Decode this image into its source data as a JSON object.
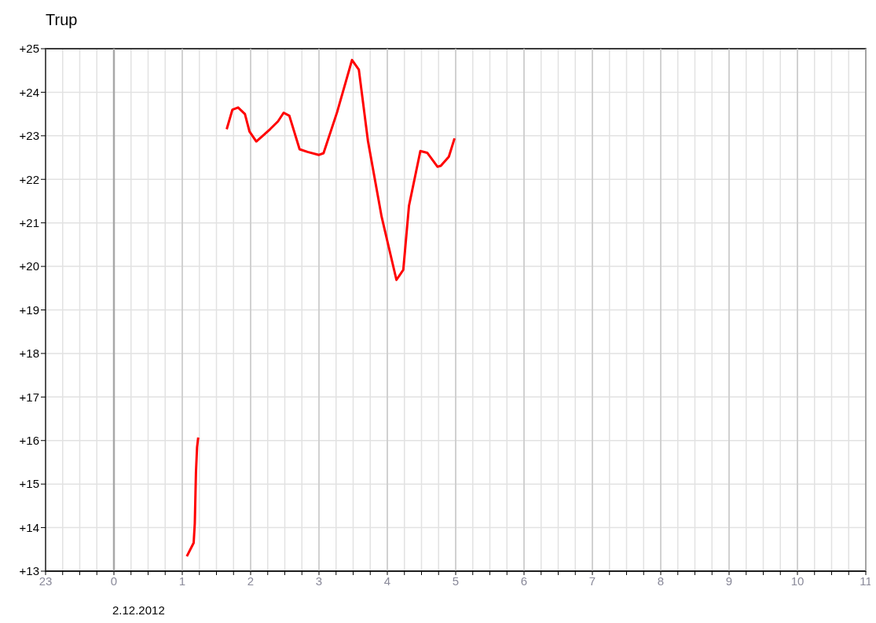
{
  "chart_data": {
    "type": "line",
    "title": "Trup",
    "x": [
      "2012-12-02T01:04",
      "2012-12-02T01:10",
      "2012-12-02T01:11",
      "2012-12-02T01:12",
      "2012-12-02T01:13",
      "2012-12-02T01:14",
      "2012-12-02T01:27",
      "2012-12-02T01:39",
      "2012-12-02T01:44",
      "2012-12-02T01:49",
      "2012-12-02T01:55",
      "2012-12-02T01:59",
      "2012-12-02T02:05",
      "2012-12-02T02:12",
      "2012-12-02T02:17",
      "2012-12-02T02:24",
      "2012-12-02T02:29",
      "2012-12-02T02:34",
      "2012-12-02T02:43",
      "2012-12-02T02:50",
      "2012-12-02T03:00",
      "2012-12-02T03:04",
      "2012-12-02T03:16",
      "2012-12-02T03:29",
      "2012-12-02T03:35",
      "2012-12-02T03:43",
      "2012-12-02T03:55",
      "2012-12-02T04:08",
      "2012-12-02T04:14",
      "2012-12-02T04:19",
      "2012-12-02T04:29",
      "2012-12-02T04:35",
      "2012-12-02T04:44",
      "2012-12-02T04:47",
      "2012-12-02T04:54",
      "2012-12-02T04:59"
    ],
    "series": [
      {
        "color": "#ff0000",
        "values": [
          13.34,
          13.65,
          14.1,
          15.26,
          15.85,
          16.07,
          null,
          23.15,
          23.6,
          23.65,
          23.5,
          23.1,
          22.87,
          23.03,
          23.15,
          23.33,
          23.53,
          23.46,
          22.69,
          22.63,
          22.56,
          22.6,
          23.55,
          24.74,
          24.52,
          22.88,
          21.14,
          19.69,
          19.92,
          21.39,
          22.65,
          22.61,
          22.29,
          22.31,
          22.52,
          22.94
        ]
      }
    ],
    "xlim": [
      "2012-12-01T23:00",
      "2012-12-02T11:00"
    ],
    "xticks": [
      {
        "value": "2012-12-01T23:00",
        "label": "23"
      },
      {
        "value": "2012-12-01T23:15",
        "label": null
      },
      {
        "value": "2012-12-01T23:30",
        "label": null
      },
      {
        "value": "2012-12-01T23:45",
        "label": null
      },
      {
        "value": "2012-12-02T00:00",
        "label": "0"
      },
      {
        "value": "2012-12-02T00:15",
        "label": null
      },
      {
        "value": "2012-12-02T00:30",
        "label": null
      },
      {
        "value": "2012-12-02T00:45",
        "label": null
      },
      {
        "value": "2012-12-02T01:00",
        "label": "1"
      },
      {
        "value": "2012-12-02T01:15",
        "label": null
      },
      {
        "value": "2012-12-02T01:30",
        "label": null
      },
      {
        "value": "2012-12-02T01:45",
        "label": null
      },
      {
        "value": "2012-12-02T02:00",
        "label": "2"
      },
      {
        "value": "2012-12-02T02:15",
        "label": null
      },
      {
        "value": "2012-12-02T02:30",
        "label": null
      },
      {
        "value": "2012-12-02T02:45",
        "label": null
      },
      {
        "value": "2012-12-02T03:00",
        "label": "3"
      },
      {
        "value": "2012-12-02T03:15",
        "label": null
      },
      {
        "value": "2012-12-02T03:30",
        "label": null
      },
      {
        "value": "2012-12-02T03:45",
        "label": null
      },
      {
        "value": "2012-12-02T04:00",
        "label": "4"
      },
      {
        "value": "2012-12-02T04:15",
        "label": null
      },
      {
        "value": "2012-12-02T04:30",
        "label": null
      },
      {
        "value": "2012-12-02T04:45",
        "label": null
      },
      {
        "value": "2012-12-02T05:00",
        "label": "5"
      },
      {
        "value": "2012-12-02T05:15",
        "label": null
      },
      {
        "value": "2012-12-02T05:30",
        "label": null
      },
      {
        "value": "2012-12-02T05:45",
        "label": null
      },
      {
        "value": "2012-12-02T06:00",
        "label": "6"
      },
      {
        "value": "2012-12-02T06:15",
        "label": null
      },
      {
        "value": "2012-12-02T06:30",
        "label": null
      },
      {
        "value": "2012-12-02T06:45",
        "label": null
      },
      {
        "value": "2012-12-02T07:00",
        "label": "7"
      },
      {
        "value": "2012-12-02T07:15",
        "label": null
      },
      {
        "value": "2012-12-02T07:30",
        "label": null
      },
      {
        "value": "2012-12-02T07:45",
        "label": null
      },
      {
        "value": "2012-12-02T08:00",
        "label": "8"
      },
      {
        "value": "2012-12-02T08:15",
        "label": null
      },
      {
        "value": "2012-12-02T08:30",
        "label": null
      },
      {
        "value": "2012-12-02T08:45",
        "label": null
      },
      {
        "value": "2012-12-02T09:00",
        "label": "9"
      },
      {
        "value": "2012-12-02T09:15",
        "label": null
      },
      {
        "value": "2012-12-02T09:30",
        "label": null
      },
      {
        "value": "2012-12-02T09:45",
        "label": null
      },
      {
        "value": "2012-12-02T10:00",
        "label": "10"
      },
      {
        "value": "2012-12-02T10:15",
        "label": null
      },
      {
        "value": "2012-12-02T10:30",
        "label": null
      },
      {
        "value": "2012-12-02T10:45",
        "label": null
      },
      {
        "value": "2012-12-02T11:00",
        "label": "11"
      }
    ],
    "ylim": [
      13,
      25
    ],
    "yticks": [
      {
        "value": 13,
        "label": "+13"
      },
      {
        "value": 14,
        "label": "+14"
      },
      {
        "value": 15,
        "label": "+15"
      },
      {
        "value": 16,
        "label": "+16"
      },
      {
        "value": 17,
        "label": "+17"
      },
      {
        "value": 18,
        "label": "+18"
      },
      {
        "value": 19,
        "label": "+19"
      },
      {
        "value": 20,
        "label": "+20"
      },
      {
        "value": 21,
        "label": "+21"
      },
      {
        "value": 22,
        "label": "+22"
      },
      {
        "value": 23,
        "label": "+23"
      },
      {
        "value": 24,
        "label": "+24"
      },
      {
        "value": 25,
        "label": "+25"
      }
    ],
    "ref_lines": [
      {
        "axis": "x",
        "value": "2012-12-02T00:00",
        "label": "2.12.2012",
        "color": "#a8a8a8"
      }
    ],
    "grid": true,
    "marker": "none",
    "line_style": "solid"
  }
}
